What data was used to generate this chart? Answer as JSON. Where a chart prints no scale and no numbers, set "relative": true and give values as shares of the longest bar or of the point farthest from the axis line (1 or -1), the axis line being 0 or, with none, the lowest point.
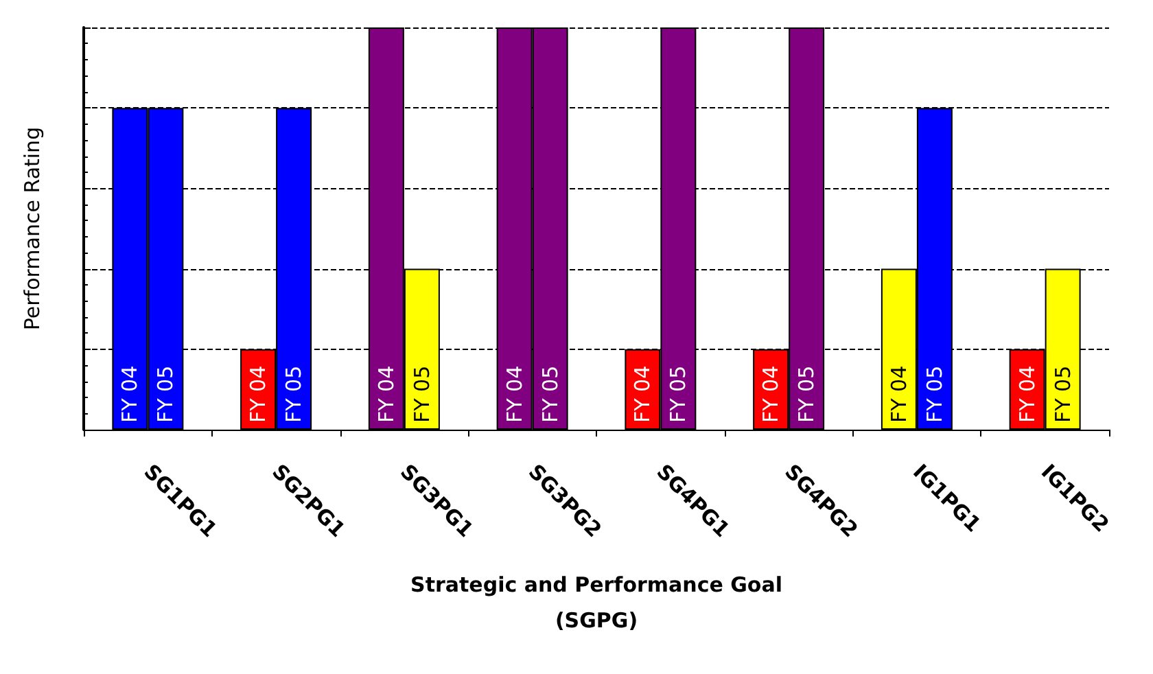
{
  "chart_data": {
    "type": "bar",
    "relative": true,
    "xlabel": "Strategic and Performance Goal\n(SGPG)",
    "ylabel": "Performance Rating",
    "categories": [
      "SG1PG1",
      "SG2PG1",
      "SG3PG1",
      "SG3PG2",
      "SG4PG1",
      "SG4PG2",
      "IG1PG1",
      "IG1PG2"
    ],
    "series": [
      {
        "name": "FY 04",
        "colors": [
          "#0000ff",
          "#ff0000",
          "#800080",
          "#800080",
          "#ff0000",
          "#ff0000",
          "#ffff00",
          "#ff0000"
        ],
        "values": [
          0.8,
          0.2,
          1,
          1,
          0.2,
          0.2,
          0.4,
          0.2
        ]
      },
      {
        "name": "FY 05",
        "colors": [
          "#0000ff",
          "#0000ff",
          "#ffff00",
          "#800080",
          "#800080",
          "#800080",
          "#0000ff",
          "#ffff00"
        ],
        "values": [
          0.8,
          0.8,
          0.4,
          1,
          1,
          1,
          0.8,
          0.4
        ]
      }
    ],
    "grid": "y"
  }
}
